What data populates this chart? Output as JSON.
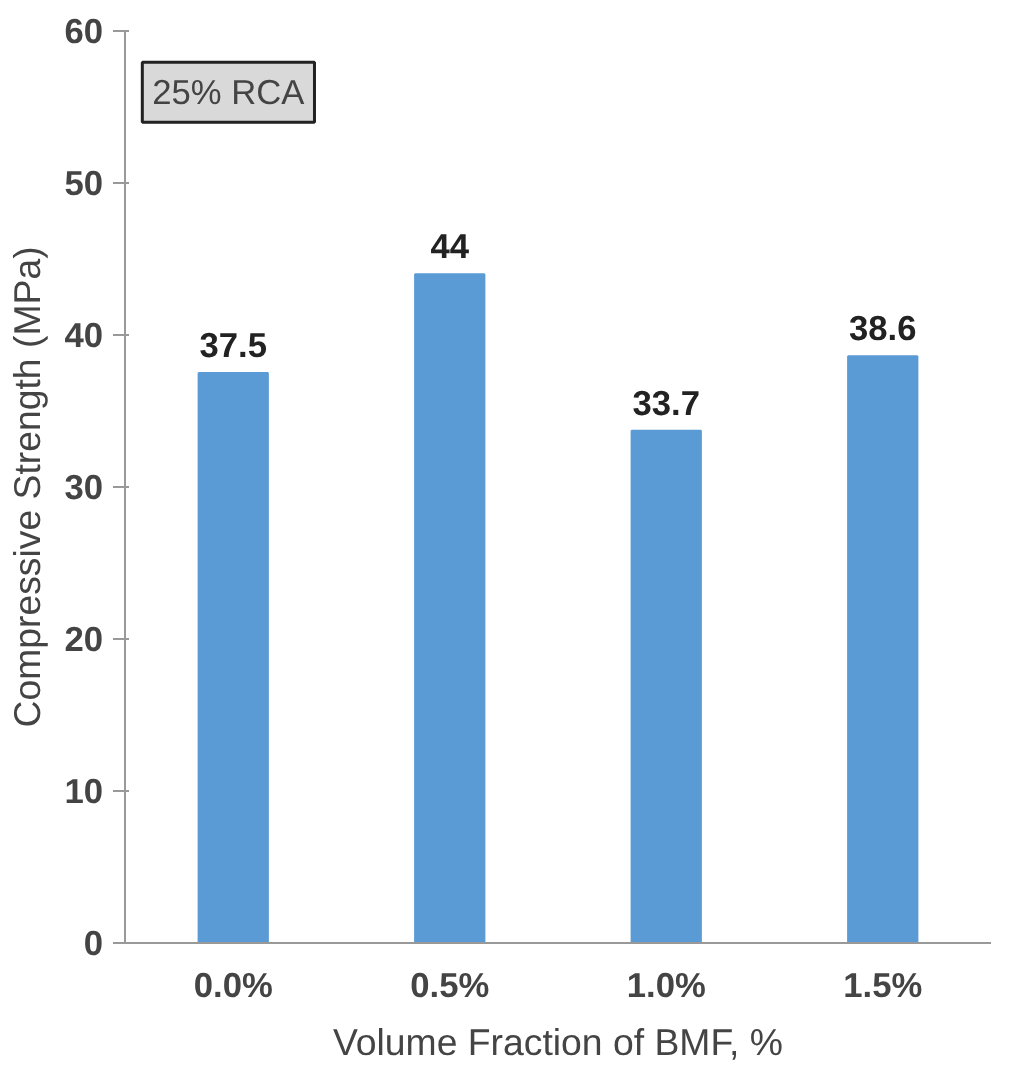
{
  "chart_data": {
    "type": "bar",
    "xlabel": "Volume Fraction of BMF, %",
    "ylabel": "Compressive Strength (MPa)",
    "categories": [
      "0.0%",
      "0.5%",
      "1.0%",
      "1.5%"
    ],
    "values": [
      37.5,
      44,
      33.7,
      38.6
    ],
    "color": "#5b9bd5",
    "ylim": [
      0,
      60
    ],
    "yticks": [
      0,
      10,
      20,
      30,
      40,
      50,
      60
    ],
    "grid": false,
    "data_labels": true,
    "annotations": [
      "25% RCA"
    ]
  }
}
